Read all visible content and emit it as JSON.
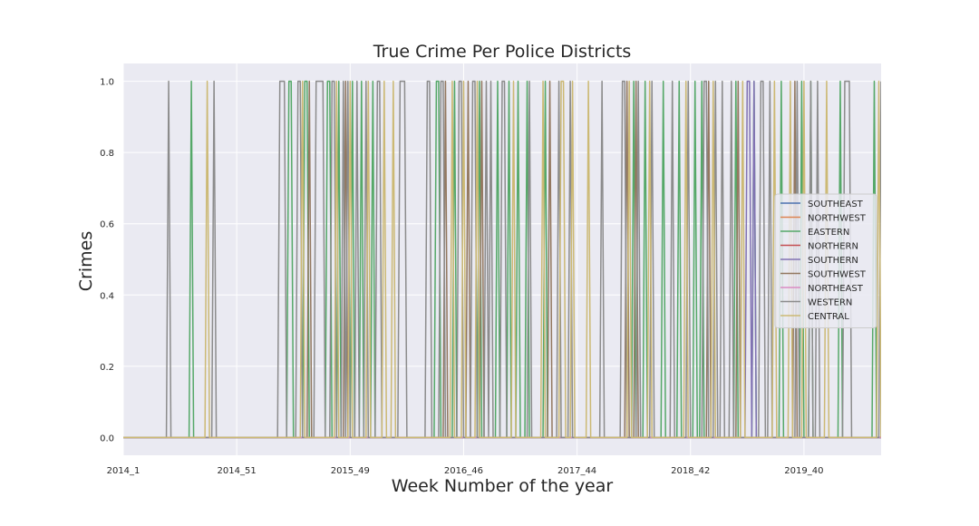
{
  "chart_data": {
    "type": "line",
    "title": "True Crime Per Police Districts",
    "xlabel": "Week Number of the year",
    "ylabel": "Crimes",
    "ylim": [
      -0.05,
      1.05
    ],
    "yticks": [
      0.0,
      0.2,
      0.4,
      0.6,
      0.8,
      1.0
    ],
    "ytick_labels": [
      "0.0",
      "0.2",
      "0.4",
      "0.6",
      "0.8",
      "1.0"
    ],
    "x_count": 334,
    "xticks": [
      0,
      50,
      100,
      150,
      200,
      250,
      300
    ],
    "xtick_labels": [
      "2014_1",
      "2014_51",
      "2015_49",
      "2016_46",
      "2017_44",
      "2018_42",
      "2019_40"
    ],
    "grid": true,
    "legend_position": "center-right",
    "series": [
      {
        "name": "SOUTHEAST",
        "color": "#4c72b0",
        "one_weeks": []
      },
      {
        "name": "NORTHWEST",
        "color": "#dd8452",
        "one_weeks": []
      },
      {
        "name": "EASTERN",
        "color": "#55a868",
        "one_weeks": [
          30,
          73,
          74,
          80,
          81,
          90,
          91,
          95,
          101,
          105,
          110,
          138,
          139,
          146,
          157,
          165,
          170,
          174,
          178,
          186,
          225,
          230,
          238,
          245,
          252,
          255,
          270,
          278,
          290,
          299,
          303,
          316,
          331
        ]
      },
      {
        "name": "NORTHERN",
        "color": "#c44e52",
        "one_weeks": []
      },
      {
        "name": "SOUTHERN",
        "color": "#8172b3",
        "one_weeks": [
          275,
          276,
          278
        ]
      },
      {
        "name": "SOUTHWEST",
        "color": "#937860",
        "one_weeks": [
          82,
          98,
          142,
          152,
          158,
          188,
          222,
          226,
          258,
          271,
          296
        ]
      },
      {
        "name": "NORTHEAST",
        "color": "#da8bc3",
        "one_weeks": []
      },
      {
        "name": "WESTERN",
        "color": "#8c8c8c",
        "one_weeks": [
          20,
          40,
          69,
          70,
          71,
          77,
          78,
          85,
          86,
          87,
          88,
          92,
          93,
          97,
          99,
          103,
          107,
          112,
          113,
          122,
          123,
          124,
          134,
          135,
          140,
          141,
          148,
          149,
          154,
          155,
          160,
          162,
          167,
          168,
          179,
          192,
          197,
          211,
          220,
          221,
          227,
          233,
          242,
          249,
          256,
          257,
          261,
          264,
          268,
          281,
          282,
          285,
          297,
          303,
          306,
          318,
          319,
          320,
          334
        ]
      },
      {
        "name": "CENTRAL",
        "color": "#ccb974",
        "one_weeks": [
          37,
          79,
          94,
          100,
          108,
          115,
          119,
          145,
          150,
          156,
          172,
          185,
          193,
          194,
          198,
          205,
          223,
          232,
          248,
          260,
          273,
          287,
          294,
          300,
          310,
          333
        ]
      }
    ]
  }
}
